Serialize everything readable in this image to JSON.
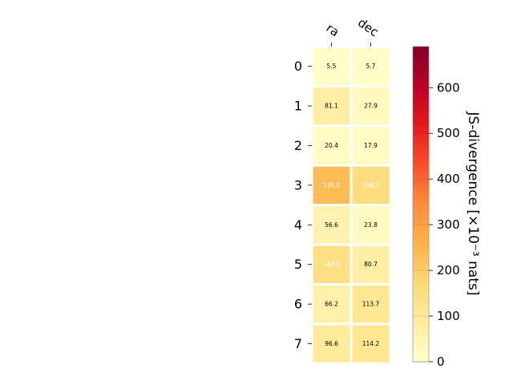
{
  "chart_data": {
    "type": "heatmap",
    "columns": [
      "ra",
      "dec"
    ],
    "rows": [
      "0",
      "1",
      "2",
      "3",
      "4",
      "5",
      "6",
      "7"
    ],
    "values": [
      [
        5.5,
        5.7
      ],
      [
        81.1,
        27.9
      ],
      [
        20.4,
        17.9
      ],
      [
        236.0,
        156.0
      ],
      [
        56.6,
        23.8
      ],
      [
        143.0,
        80.7
      ],
      [
        66.2,
        113.7
      ],
      [
        96.6,
        114.2
      ]
    ],
    "value_labels": [
      [
        "5.5",
        "5.7"
      ],
      [
        "81.1",
        "27.9"
      ],
      [
        "20.4",
        "17.9"
      ],
      [
        "236.0",
        "156.0"
      ],
      [
        "56.6",
        "23.8"
      ],
      [
        "143.0",
        "80.7"
      ],
      [
        "66.2",
        "113.7"
      ],
      [
        "96.6",
        "114.2"
      ]
    ],
    "colorbar": {
      "label": "JS-divergence [×10⁻³ nats]",
      "range": [
        0,
        690
      ],
      "ticks": [
        0,
        100,
        200,
        300,
        400,
        500,
        600
      ],
      "tick_labels": [
        "0",
        "100",
        "200",
        "300",
        "400",
        "500",
        "600"
      ],
      "colormap": "YlOrRd"
    },
    "grid": false,
    "light_text_threshold": 140
  }
}
